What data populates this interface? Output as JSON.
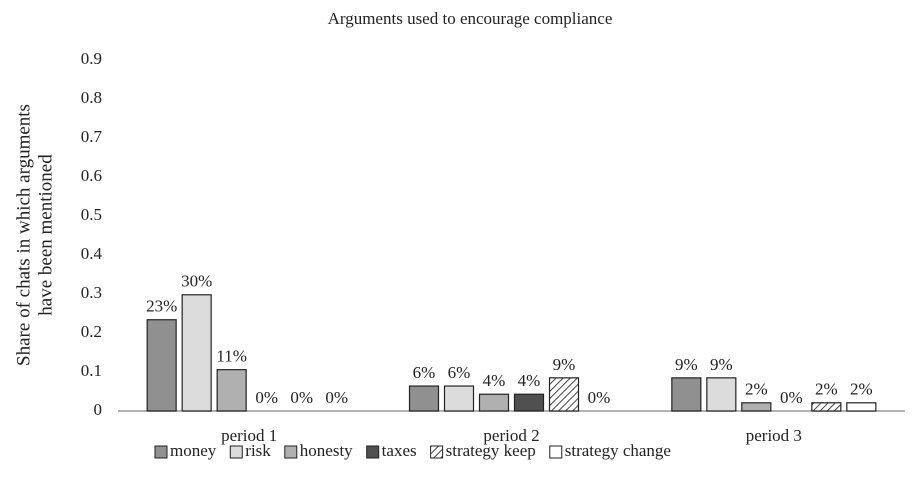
{
  "chart_data": {
    "type": "bar",
    "title": "Arguments used to encourage compliance",
    "ylabel": [
      "Share of chats in which arguments",
      "have been mentioned"
    ],
    "categories": [
      "period 1",
      "period 2",
      "period 3"
    ],
    "series": [
      {
        "name": "money",
        "color": "#909090",
        "values": [
          0.234,
          0.064,
          0.085
        ],
        "value_labels": [
          "23%",
          "6%",
          "9%"
        ]
      },
      {
        "name": "risk",
        "color": "#dcdcdc",
        "values": [
          0.298,
          0.064,
          0.085
        ],
        "value_labels": [
          "30%",
          "6%",
          "9%"
        ]
      },
      {
        "name": "honesty",
        "color": "#b0b0b0",
        "values": [
          0.106,
          0.043,
          0.021
        ],
        "value_labels": [
          "11%",
          "4%",
          "2%"
        ]
      },
      {
        "name": "taxes",
        "color": "#505050",
        "values": [
          0,
          0.043,
          0
        ],
        "value_labels": [
          "0%",
          "4%",
          "0%"
        ]
      },
      {
        "name": "strategy keep",
        "color": "#ffffff",
        "pattern": "diagonal",
        "values": [
          0,
          0.085,
          0.021
        ],
        "value_labels": [
          "0%",
          "9%",
          "2%"
        ]
      },
      {
        "name": "strategy change",
        "color": "#ffffff",
        "values": [
          0,
          0,
          0.021
        ],
        "value_labels": [
          "0%",
          "0%",
          "2%"
        ]
      }
    ],
    "ylim": [
      0,
      0.9
    ],
    "yticks": [
      0,
      0.1,
      0.2,
      0.3,
      0.4,
      0.5,
      0.6,
      0.7,
      0.8,
      0.9
    ],
    "grid": false,
    "legend": "bottom"
  }
}
